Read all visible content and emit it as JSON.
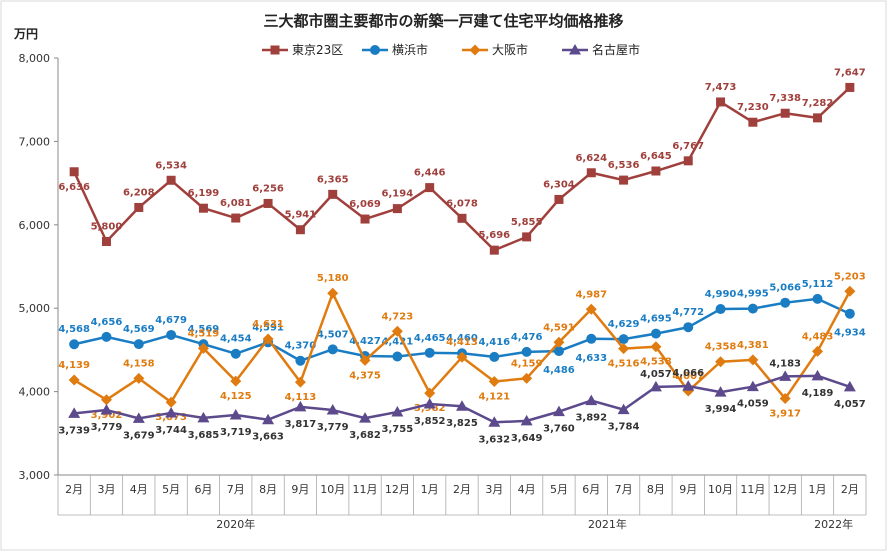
{
  "chart_data": {
    "type": "line",
    "title": "三大都市圏主要都市の新築一戸建て住宅平均価格推移",
    "ylabel": "万円",
    "ylim": [
      3000,
      8000
    ],
    "yticks": [
      "3,000",
      "4,000",
      "5,000",
      "6,000",
      "7,000",
      "8,000"
    ],
    "grid": false,
    "legend_position": "top",
    "categories": [
      "2月",
      "3月",
      "4月",
      "5月",
      "6月",
      "7月",
      "8月",
      "9月",
      "10月",
      "11月",
      "12月",
      "1月",
      "2月",
      "3月",
      "4月",
      "5月",
      "6月",
      "7月",
      "8月",
      "9月",
      "10月",
      "11月",
      "12月",
      "1月",
      "2月"
    ],
    "year_groups": [
      {
        "label": "2020年",
        "start": 0,
        "end": 10
      },
      {
        "label": "2021年",
        "start": 11,
        "end": 22
      },
      {
        "label": "2022年",
        "start": 23,
        "end": 24
      }
    ],
    "series": [
      {
        "name": "東京23区",
        "color": "#a0403c",
        "marker": "square",
        "values": [
          6636,
          5800,
          6208,
          6534,
          6199,
          6081,
          6256,
          5941,
          6365,
          6069,
          6194,
          6446,
          6078,
          5696,
          5855,
          6304,
          6624,
          6536,
          6645,
          6767,
          7473,
          7230,
          7338,
          7282,
          7647
        ],
        "labels": [
          "6,636",
          "5,800",
          "6,208",
          "6,534",
          "6,199",
          "6,081",
          "6,256",
          "5,941",
          "6,365",
          "6,069",
          "6,194",
          "6,446",
          "6,078",
          "5,696",
          "5,855",
          "6,304",
          "6,624",
          "6,536",
          "6,645",
          "6,767",
          "7,473",
          "7,230",
          "7,338",
          "7,282",
          "7,647"
        ]
      },
      {
        "name": "横浜市",
        "color": "#1a7dc4",
        "marker": "circle",
        "values": [
          4568,
          4656,
          4569,
          4679,
          4569,
          4454,
          4591,
          4370,
          4507,
          4427,
          4421,
          4465,
          4460,
          4416,
          4476,
          4486,
          4633,
          4629,
          4695,
          4772,
          4990,
          4995,
          5066,
          5112,
          4934
        ],
        "labels": [
          "4,568",
          "4,656",
          "4,569",
          "4,679",
          "4,569",
          "4,454",
          "4,591",
          "4,370",
          "4,507",
          "4,427",
          "4,421",
          "4,465",
          "4,460",
          "4,416",
          "4,476",
          "4,486",
          "4,633",
          "4,629",
          "4,695",
          "4,772",
          "4,990",
          "4,995",
          "5,066",
          "5,112",
          "4,934"
        ]
      },
      {
        "name": "大阪市",
        "color": "#e07b10",
        "marker": "diamond",
        "values": [
          4139,
          3902,
          4158,
          3873,
          4519,
          4125,
          4631,
          4113,
          5180,
          4375,
          4723,
          3982,
          4413,
          4121,
          4159,
          4591,
          4987,
          4516,
          4538,
          4007,
          4358,
          4381,
          3917,
          4483,
          5203
        ],
        "labels": [
          "4,139",
          "3,902",
          "4,158",
          "3,873",
          "4,519",
          "4,125",
          "4,631",
          "4,113",
          "5,180",
          "4,375",
          "4,723",
          "3,982",
          "4,413",
          "4,121",
          "4,159",
          "4,591",
          "4,987",
          "4,516",
          "4,538",
          "4,007",
          "4,358",
          "4,381",
          "3,917",
          "4,483",
          "5,203"
        ]
      },
      {
        "name": "名古屋市",
        "color": "#5c4a8c",
        "marker": "triangle",
        "values": [
          3739,
          3779,
          3679,
          3744,
          3685,
          3719,
          3663,
          3817,
          3779,
          3682,
          3755,
          3852,
          3825,
          3632,
          3649,
          3760,
          3892,
          3784,
          4057,
          4066,
          3994,
          4059,
          4183,
          4189,
          4057
        ],
        "labels": [
          "3,739",
          "3,779",
          "3,679",
          "3,744",
          "3,685",
          "3,719",
          "3,663",
          "3,817",
          "3,779",
          "3,682",
          "3,755",
          "3,852",
          "3,825",
          "3,632",
          "3,649",
          "3,760",
          "3,892",
          "3,784",
          "4,057",
          "4,066",
          "3,994",
          "4,059",
          "4,183",
          "4,189",
          "4,057"
        ]
      }
    ]
  }
}
